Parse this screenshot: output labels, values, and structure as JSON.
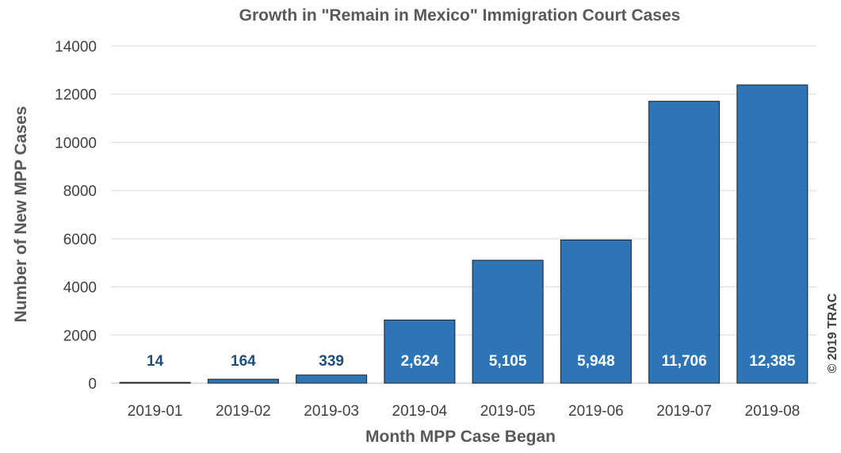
{
  "chart_data": {
    "type": "bar",
    "title": "Growth in \"Remain in Mexico\" Immigration Court Cases",
    "xlabel": "Month MPP Case Began",
    "ylabel": "Number of New MPP Cases",
    "categories": [
      "2019-01",
      "2019-02",
      "2019-03",
      "2019-04",
      "2019-05",
      "2019-06",
      "2019-07",
      "2019-08"
    ],
    "values": [
      14,
      164,
      339,
      2624,
      5105,
      5948,
      11706,
      12385
    ],
    "data_labels": [
      "14",
      "164",
      "339",
      "2,624",
      "5,105",
      "5,948",
      "11,706",
      "12,385"
    ],
    "ylim": [
      0,
      14000
    ],
    "yticks": [
      0,
      2000,
      4000,
      6000,
      8000,
      10000,
      12000,
      14000
    ],
    "grid": true,
    "legend": "none",
    "colors": {
      "bar_fill": "#2e75b6",
      "bar_stroke": "#1f1f1f",
      "label_inside": "#ffffff",
      "label_outside": "#1f4e79",
      "gridline": "#d9d9d9"
    }
  },
  "credit": "© 2019 TRAC"
}
